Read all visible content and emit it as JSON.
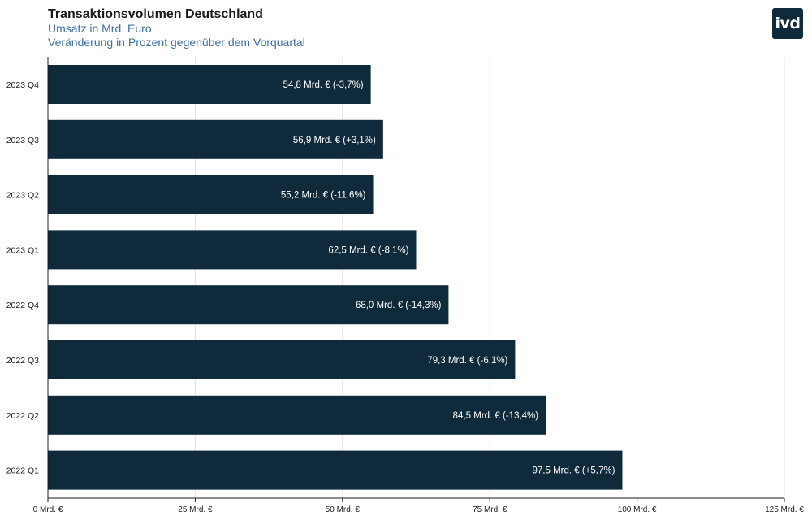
{
  "header": {
    "title": "Transaktionsvolumen Deutschland",
    "subtitle1": "Umsatz in Mrd. Euro",
    "subtitle2": "Veränderung in Prozent gegenüber dem Vorquartal"
  },
  "logo": {
    "text": "ivd"
  },
  "colors": {
    "bar": "#0e2a3b",
    "grid": "#e4e4e4",
    "axis": "#1b1b1b",
    "subtitle": "#3a6fa8"
  },
  "chart_data": {
    "type": "bar",
    "orientation": "horizontal",
    "categories": [
      "2023 Q4",
      "2023 Q3",
      "2023 Q2",
      "2023 Q1",
      "2022 Q4",
      "2022 Q3",
      "2022 Q2",
      "2022 Q1"
    ],
    "values": [
      54.8,
      56.9,
      55.2,
      62.5,
      68.0,
      79.3,
      84.5,
      97.5
    ],
    "data_labels": [
      "54,8 Mrd. € (-3,7%)",
      "56,9 Mrd. € (+3,1%)",
      "55,2 Mrd. € (-11,6%)",
      "62,5 Mrd. € (-8,1%)",
      "68,0 Mrd. € (-14,3%)",
      "79,3 Mrd. € (-6,1%)",
      "84,5 Mrd. € (-13,4%)",
      "97,5 Mrd. € (+5,7%)"
    ],
    "xlim": [
      0,
      125
    ],
    "x_ticks": [
      0,
      25,
      50,
      75,
      100,
      125
    ],
    "x_tick_labels": [
      "0 Mrd. €",
      "25 Mrd. €",
      "50 Mrd. €",
      "75 Mrd. €",
      "100 Mrd. €",
      "125 Mrd. €"
    ],
    "grid": true
  }
}
